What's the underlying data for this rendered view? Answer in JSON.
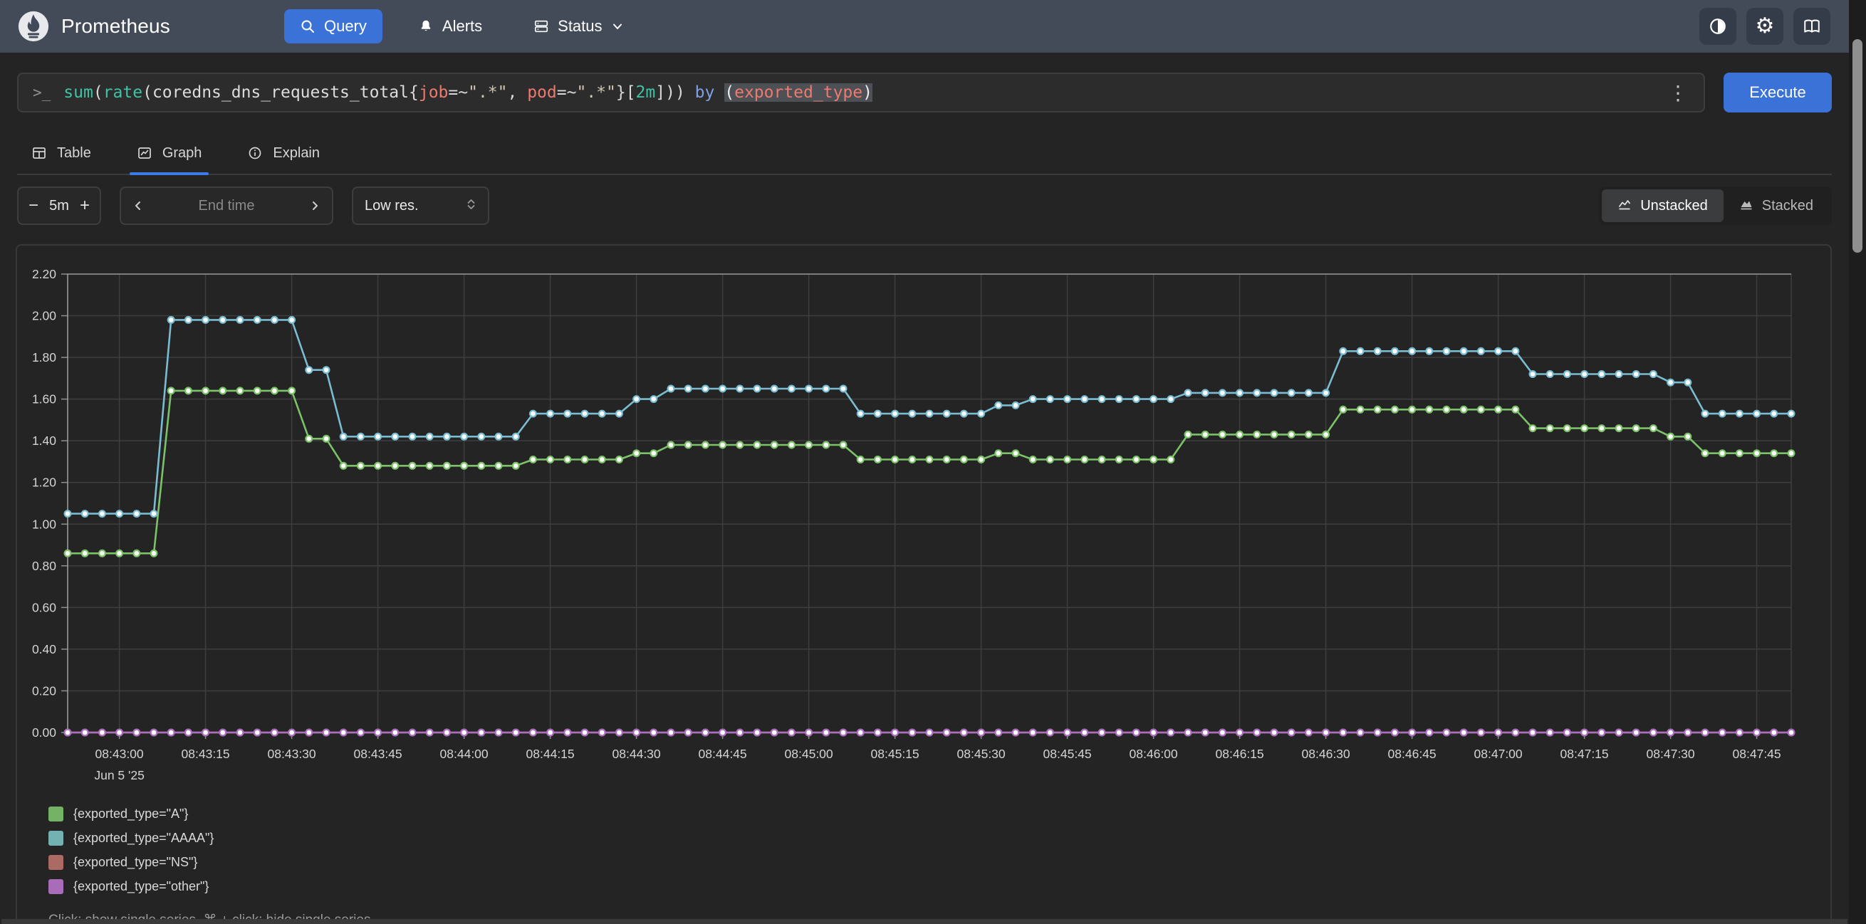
{
  "theme": {
    "accent_blue": "#3a72d8",
    "header_bg": "#434b59",
    "page_bg": "#242424",
    "tab_underline_blue": "#3d7be8"
  },
  "header": {
    "brand": "Prometheus",
    "nav": [
      {
        "label": "Query",
        "active": true
      },
      {
        "label": "Alerts",
        "active": false
      },
      {
        "label": "Status",
        "active": false,
        "has_dropdown": true
      }
    ]
  },
  "query_bar": {
    "tokens": [
      {
        "text": "sum",
        "type": "function"
      },
      {
        "text": "(",
        "type": "paren"
      },
      {
        "text": "rate",
        "type": "function"
      },
      {
        "text": "(",
        "type": "paren"
      },
      {
        "text": "coredns_dns_requests_total",
        "type": "metric"
      },
      {
        "text": "{",
        "type": "brace"
      },
      {
        "text": "job",
        "type": "label"
      },
      {
        "text": "=~",
        "type": "operator"
      },
      {
        "text": "\".*\"",
        "type": "string"
      },
      {
        "text": ", ",
        "type": "plain"
      },
      {
        "text": "pod",
        "type": "label"
      },
      {
        "text": "=~",
        "type": "operator"
      },
      {
        "text": "\".*\"",
        "type": "string"
      },
      {
        "text": "}",
        "type": "brace"
      },
      {
        "text": "[",
        "type": "bracket"
      },
      {
        "text": "2m",
        "type": "duration"
      },
      {
        "text": "]",
        "type": "bracket"
      },
      {
        "text": "))",
        "type": "paren"
      },
      {
        "text": " ",
        "type": "plain"
      },
      {
        "text": "by",
        "type": "keyword"
      },
      {
        "text": " ",
        "type": "plain"
      },
      {
        "text": "(",
        "type": "paren-highlight"
      },
      {
        "text": "exported_type",
        "type": "label-highlight"
      },
      {
        "text": ")",
        "type": "paren-highlight"
      }
    ],
    "kebab": "⋮",
    "execute_label": "Execute"
  },
  "tabs": [
    {
      "label": "Table",
      "active": false
    },
    {
      "label": "Graph",
      "active": true
    },
    {
      "label": "Explain",
      "active": false
    }
  ],
  "controls": {
    "range": {
      "minus": "−",
      "value": "5m",
      "plus": "+"
    },
    "end_time": {
      "placeholder": "End time"
    },
    "resolution": {
      "value": "Low res."
    },
    "stacking": [
      {
        "label": "Unstacked",
        "active": true
      },
      {
        "label": "Stacked",
        "active": false
      }
    ]
  },
  "chart_data": {
    "type": "line",
    "title": "",
    "xlabel": "",
    "ylabel": "",
    "grid": true,
    "legend_position": "bottom-left",
    "sample_interval_s": 3,
    "x_axis": {
      "domain_s": [
        0,
        300
      ],
      "date_label": "Jun 5 '25",
      "ticks": [
        {
          "t": 9,
          "label": "08:43:00"
        },
        {
          "t": 24,
          "label": "08:43:15"
        },
        {
          "t": 39,
          "label": "08:43:30"
        },
        {
          "t": 54,
          "label": "08:43:45"
        },
        {
          "t": 69,
          "label": "08:44:00"
        },
        {
          "t": 84,
          "label": "08:44:15"
        },
        {
          "t": 99,
          "label": "08:44:30"
        },
        {
          "t": 114,
          "label": "08:44:45"
        },
        {
          "t": 129,
          "label": "08:45:00"
        },
        {
          "t": 144,
          "label": "08:45:15"
        },
        {
          "t": 159,
          "label": "08:45:30"
        },
        {
          "t": 174,
          "label": "08:45:45"
        },
        {
          "t": 189,
          "label": "08:46:00"
        },
        {
          "t": 204,
          "label": "08:46:15"
        },
        {
          "t": 219,
          "label": "08:46:30"
        },
        {
          "t": 234,
          "label": "08:46:45"
        },
        {
          "t": 249,
          "label": "08:47:00"
        },
        {
          "t": 264,
          "label": "08:47:15"
        },
        {
          "t": 279,
          "label": "08:47:30"
        },
        {
          "t": 294,
          "label": "08:47:45"
        }
      ]
    },
    "y_axis": {
      "domain": [
        0,
        2.2
      ],
      "tick_step": 0.2,
      "ticks": [
        "0.00",
        "0.20",
        "0.40",
        "0.60",
        "0.80",
        "1.00",
        "1.20",
        "1.40",
        "1.60",
        "1.80",
        "2.00",
        "2.20"
      ]
    },
    "series": [
      {
        "name": "{exported_type=\"A\"}",
        "legend_color": "#74b266",
        "line_color": "#7cc268",
        "plateau_segments": [
          [
            0,
            15,
            0.86
          ],
          [
            18,
            39,
            1.64
          ],
          [
            42,
            45,
            1.41
          ],
          [
            48,
            78,
            1.28
          ],
          [
            81,
            96,
            1.31
          ],
          [
            99,
            102,
            1.34
          ],
          [
            105,
            135,
            1.38
          ],
          [
            138,
            159,
            1.31
          ],
          [
            162,
            165,
            1.34
          ],
          [
            168,
            192,
            1.31
          ],
          [
            195,
            219,
            1.43
          ],
          [
            222,
            252,
            1.55
          ],
          [
            255,
            276,
            1.46
          ],
          [
            279,
            282,
            1.42
          ],
          [
            285,
            300,
            1.34
          ]
        ]
      },
      {
        "name": "{exported_type=\"AAAA\"}",
        "legend_color": "#74b1b2",
        "line_color": "#7abcd1",
        "plateau_segments": [
          [
            0,
            15,
            1.05
          ],
          [
            18,
            39,
            1.98
          ],
          [
            42,
            45,
            1.74
          ],
          [
            48,
            78,
            1.42
          ],
          [
            81,
            96,
            1.53
          ],
          [
            99,
            102,
            1.6
          ],
          [
            105,
            135,
            1.65
          ],
          [
            138,
            159,
            1.53
          ],
          [
            162,
            165,
            1.57
          ],
          [
            168,
            192,
            1.6
          ],
          [
            195,
            219,
            1.63
          ],
          [
            222,
            252,
            1.83
          ],
          [
            255,
            276,
            1.72
          ],
          [
            279,
            282,
            1.68
          ],
          [
            285,
            300,
            1.53
          ]
        ]
      },
      {
        "name": "{exported_type=\"NS\"}",
        "legend_color": "#ab6a64",
        "line_color": "#b46a62",
        "plateau_segments": [
          [
            0,
            300,
            0
          ]
        ]
      },
      {
        "name": "{exported_type=\"other\"}",
        "legend_color": "#a96cb8",
        "line_color": "#ab6ec1",
        "plateau_segments": [
          [
            0,
            300,
            0
          ]
        ]
      }
    ]
  },
  "footer_hint": "Click: show single series, ⌘ + click: hide single series"
}
